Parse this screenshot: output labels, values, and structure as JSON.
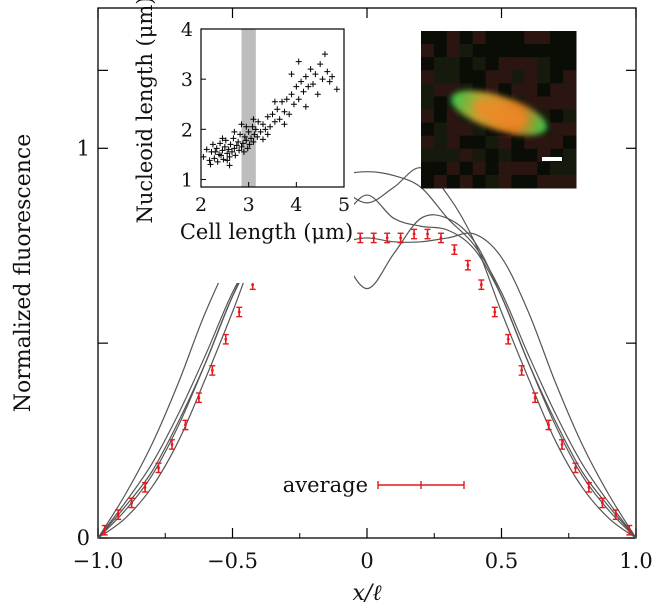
{
  "chart_data": [
    {
      "type": "line",
      "xlabel": "x/ℓ",
      "ylabel": "Normalized fluorescence",
      "xlim": [
        -1.0,
        1.0
      ],
      "ylim": [
        0,
        1.36
      ],
      "x_ticks": [
        -1.0,
        -0.5,
        0.0,
        0.5,
        1.0
      ],
      "x_tick_labels": [
        "−1.0",
        "−0.5",
        "0",
        "0.5",
        "1.0"
      ],
      "y_ticks": [
        0,
        0.5,
        1,
        1.2
      ],
      "y_tick_labels": [
        "0",
        "",
        "1",
        ""
      ],
      "grid": false,
      "legend": {
        "placement": "bottom-center",
        "entry": "average"
      },
      "series": [
        {
          "values_x": [
            -1.0,
            -0.9,
            -0.8,
            -0.7,
            -0.6,
            -0.5,
            -0.4,
            -0.3,
            -0.2,
            -0.1,
            0.0,
            0.1,
            0.2,
            0.3,
            0.4,
            0.5,
            0.6,
            0.7,
            0.8,
            0.9,
            1.0
          ],
          "values_y": [
            0.0,
            0.09,
            0.19,
            0.32,
            0.47,
            0.63,
            0.75,
            0.82,
            0.9,
            0.93,
            0.94,
            0.93,
            0.9,
            0.82,
            0.75,
            0.63,
            0.47,
            0.32,
            0.19,
            0.09,
            0.0
          ]
        },
        {
          "values_x": [
            -1.0,
            -0.9,
            -0.8,
            -0.7,
            -0.6,
            -0.5,
            -0.4,
            -0.3,
            -0.2,
            -0.1,
            0.0,
            0.1,
            0.2,
            0.3,
            0.4,
            0.5,
            0.6,
            0.7,
            0.8,
            0.9,
            1.0
          ],
          "values_y": [
            0.0,
            0.05,
            0.13,
            0.25,
            0.41,
            0.58,
            0.76,
            0.88,
            0.95,
            0.9,
            0.86,
            0.9,
            0.95,
            0.88,
            0.76,
            0.58,
            0.41,
            0.25,
            0.13,
            0.05,
            0.0
          ]
        },
        {
          "values_x": [
            -1.0,
            -0.9,
            -0.8,
            -0.7,
            -0.6,
            -0.5,
            -0.4,
            -0.3,
            -0.2,
            -0.1,
            0.0,
            0.1,
            0.2,
            0.3,
            0.4,
            0.5,
            0.6,
            0.7,
            0.8,
            0.9,
            1.0
          ],
          "values_y": [
            0.0,
            0.08,
            0.17,
            0.3,
            0.45,
            0.62,
            0.76,
            0.82,
            0.82,
            0.73,
            0.64,
            0.73,
            0.82,
            0.82,
            0.76,
            0.62,
            0.45,
            0.3,
            0.17,
            0.08,
            0.0
          ]
        },
        {
          "values_x": [
            -1.0,
            -0.9,
            -0.8,
            -0.7,
            -0.6,
            -0.5,
            -0.4,
            -0.3,
            -0.2,
            -0.1,
            0.0,
            0.1,
            0.2,
            0.3,
            0.4,
            0.5,
            0.6,
            0.7,
            0.8,
            0.9,
            1.0
          ],
          "values_y": [
            0.0,
            0.11,
            0.24,
            0.4,
            0.58,
            0.72,
            0.78,
            0.77,
            0.76,
            0.76,
            0.77,
            0.76,
            0.76,
            0.77,
            0.78,
            0.72,
            0.58,
            0.4,
            0.24,
            0.11,
            0.0
          ]
        },
        {
          "values_x": [
            -1.0,
            -0.9,
            -0.8,
            -0.7,
            -0.6,
            -0.5,
            -0.4,
            -0.3,
            -0.2,
            -0.1,
            0.0,
            0.1,
            0.2,
            0.3,
            0.4,
            0.5,
            0.6,
            0.7,
            0.8,
            0.9,
            1.0
          ],
          "values_y": [
            0.0,
            0.07,
            0.16,
            0.29,
            0.45,
            0.62,
            0.74,
            0.79,
            0.8,
            0.82,
            0.88,
            0.82,
            0.8,
            0.79,
            0.74,
            0.62,
            0.45,
            0.29,
            0.16,
            0.07,
            0.0
          ]
        },
        {
          "name": "average",
          "values_x": [
            -0.975,
            -0.925,
            -0.875,
            -0.825,
            -0.775,
            -0.725,
            -0.675,
            -0.625,
            -0.575,
            -0.525,
            -0.475,
            -0.425,
            -0.375,
            -0.325,
            -0.275,
            -0.225,
            -0.175,
            -0.125,
            -0.075,
            -0.025,
            0.025,
            0.075,
            0.125,
            0.175,
            0.225,
            0.275,
            0.325,
            0.375,
            0.425,
            0.475,
            0.525,
            0.575,
            0.625,
            0.675,
            0.725,
            0.775,
            0.825,
            0.875,
            0.925,
            0.975
          ],
          "values_y": [
            0.02,
            0.06,
            0.09,
            0.13,
            0.18,
            0.24,
            0.29,
            0.36,
            0.43,
            0.51,
            0.58,
            0.65,
            0.7,
            0.74,
            0.77,
            0.78,
            0.78,
            0.78,
            0.77,
            0.77,
            0.77,
            0.77,
            0.77,
            0.78,
            0.78,
            0.77,
            0.74,
            0.7,
            0.65,
            0.58,
            0.51,
            0.43,
            0.36,
            0.29,
            0.24,
            0.18,
            0.13,
            0.09,
            0.06,
            0.02
          ],
          "error": 0.012,
          "color": "#e41a1c"
        }
      ],
      "lines_color": "#555555"
    },
    {
      "type": "scatter",
      "xlabel": "Cell length (μm)",
      "ylabel": "Nucleoid length (μm)",
      "xlim": [
        2,
        5
      ],
      "ylim": [
        0.85,
        4
      ],
      "x_ticks": [
        2,
        3,
        4,
        5
      ],
      "x_tick_labels": [
        "2",
        "3",
        "4",
        "5"
      ],
      "y_ticks": [
        1,
        2,
        3,
        4
      ],
      "y_tick_labels": [
        "1",
        "2",
        "3",
        "4"
      ],
      "shaded_band_x": [
        2.85,
        3.15
      ],
      "band_color": "#bdbdbd",
      "points": [
        [
          2.05,
          1.45
        ],
        [
          2.12,
          1.6
        ],
        [
          2.18,
          1.38
        ],
        [
          2.22,
          1.55
        ],
        [
          2.25,
          1.7
        ],
        [
          2.28,
          1.42
        ],
        [
          2.3,
          1.55
        ],
        [
          2.33,
          1.62
        ],
        [
          2.35,
          1.35
        ],
        [
          2.38,
          1.5
        ],
        [
          2.4,
          1.72
        ],
        [
          2.42,
          1.48
        ],
        [
          2.45,
          1.58
        ],
        [
          2.47,
          1.4
        ],
        [
          2.5,
          1.65
        ],
        [
          2.52,
          1.78
        ],
        [
          2.55,
          1.52
        ],
        [
          2.58,
          1.6
        ],
        [
          2.6,
          1.45
        ],
        [
          2.62,
          1.7
        ],
        [
          2.65,
          1.55
        ],
        [
          2.68,
          1.82
        ],
        [
          2.7,
          1.62
        ],
        [
          2.72,
          1.48
        ],
        [
          2.75,
          1.68
        ],
        [
          2.78,
          1.75
        ],
        [
          2.8,
          1.58
        ],
        [
          2.82,
          1.9
        ],
        [
          2.85,
          1.65
        ],
        [
          2.88,
          1.72
        ],
        [
          2.9,
          1.55
        ],
        [
          2.92,
          1.85
        ],
        [
          2.95,
          1.78
        ],
        [
          2.98,
          1.62
        ],
        [
          3.0,
          1.95
        ],
        [
          3.02,
          1.7
        ],
        [
          3.05,
          1.82
        ],
        [
          3.08,
          2.05
        ],
        [
          3.1,
          1.75
        ],
        [
          3.12,
          1.9
        ],
        [
          3.15,
          2.0
        ],
        [
          3.18,
          1.85
        ],
        [
          3.2,
          2.15
        ],
        [
          3.25,
          1.95
        ],
        [
          3.3,
          2.1
        ],
        [
          3.35,
          2.0
        ],
        [
          3.4,
          2.25
        ],
        [
          3.45,
          2.05
        ],
        [
          3.5,
          2.3
        ],
        [
          3.55,
          2.15
        ],
        [
          3.6,
          2.4
        ],
        [
          3.65,
          2.2
        ],
        [
          3.7,
          2.55
        ],
        [
          3.75,
          2.35
        ],
        [
          3.8,
          2.6
        ],
        [
          3.85,
          2.3
        ],
        [
          3.9,
          2.7
        ],
        [
          3.95,
          2.5
        ],
        [
          4.0,
          2.85
        ],
        [
          4.05,
          2.6
        ],
        [
          4.1,
          2.95
        ],
        [
          4.15,
          2.75
        ],
        [
          4.2,
          3.05
        ],
        [
          4.25,
          2.85
        ],
        [
          4.3,
          3.2
        ],
        [
          4.35,
          2.9
        ],
        [
          4.4,
          3.1
        ],
        [
          4.45,
          2.7
        ],
        [
          4.5,
          3.3
        ],
        [
          4.55,
          3.0
        ],
        [
          4.6,
          3.5
        ],
        [
          4.65,
          3.15
        ],
        [
          4.7,
          2.95
        ],
        [
          4.75,
          3.05
        ],
        [
          4.85,
          2.8
        ],
        [
          3.1,
          2.2
        ],
        [
          2.95,
          2.05
        ],
        [
          3.3,
          1.8
        ],
        [
          2.7,
          1.95
        ],
        [
          2.55,
          1.38
        ],
        [
          2.45,
          1.82
        ],
        [
          2.2,
          1.3
        ],
        [
          3.55,
          2.55
        ],
        [
          3.75,
          2.1
        ],
        [
          4.05,
          3.35
        ],
        [
          2.6,
          1.28
        ],
        [
          2.85,
          2.1
        ],
        [
          3.4,
          1.9
        ],
        [
          4.2,
          2.45
        ],
        [
          3.9,
          3.1
        ]
      ]
    }
  ],
  "micrograph": {
    "scale_bar": true
  }
}
